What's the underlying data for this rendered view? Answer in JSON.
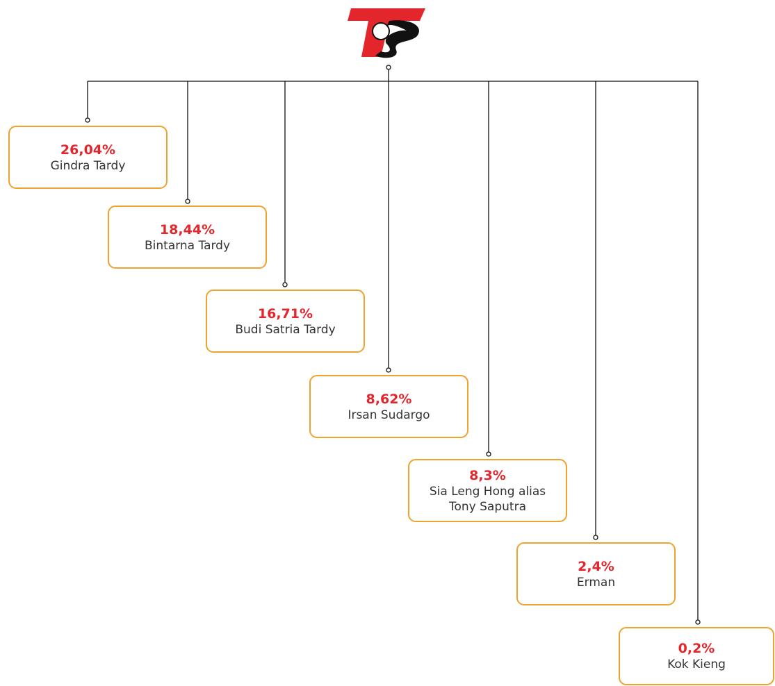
{
  "nodes": [
    {
      "percent": "26,04%",
      "name": "Gindra Tardy"
    },
    {
      "percent": "18,44%",
      "name": "Bintarna Tardy"
    },
    {
      "percent": "16,71%",
      "name": "Budi Satria Tardy"
    },
    {
      "percent": "8,62%",
      "name": "Irsan Sudargo"
    },
    {
      "percent": "8,3%",
      "name": "Sia Leng Hong alias Tony Saputra"
    },
    {
      "percent": "2,4%",
      "name": "Erman"
    },
    {
      "percent": "0,2%",
      "name": "Kok Kieng"
    }
  ]
}
